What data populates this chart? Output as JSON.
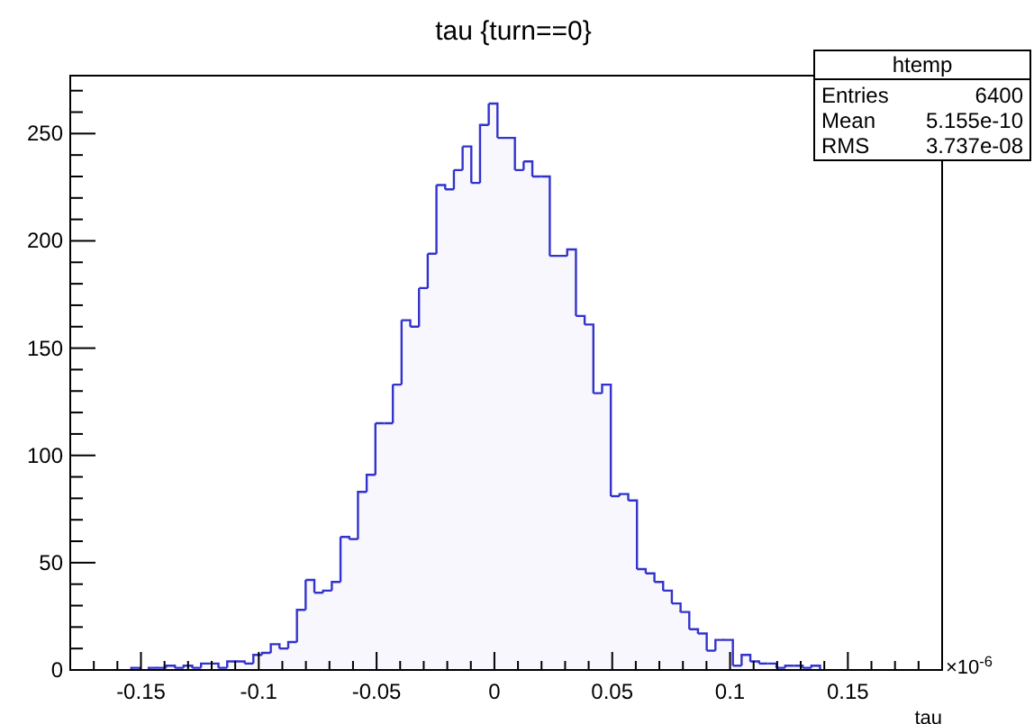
{
  "chart_data": {
    "type": "histogram",
    "title": "tau {turn==0}",
    "xlabel": "tau",
    "bins": [
      -0.18,
      -0.1763,
      -0.1726,
      -0.1689,
      -0.1652,
      -0.1615,
      -0.1578,
      -0.1541,
      -0.1504,
      -0.1467,
      -0.143,
      -0.1393,
      -0.1356,
      -0.1319,
      -0.1282,
      -0.1245,
      -0.1208,
      -0.1171,
      -0.1134,
      -0.1097,
      -0.106,
      -0.1023,
      -0.0986,
      -0.0949,
      -0.0912,
      -0.0875,
      -0.0838,
      -0.0801,
      -0.0764,
      -0.0727,
      -0.069,
      -0.0653,
      -0.0616,
      -0.0579,
      -0.0542,
      -0.0505,
      -0.0468,
      -0.0431,
      -0.0394,
      -0.0357,
      -0.032,
      -0.0283,
      -0.0246,
      -0.0209,
      -0.0172,
      -0.0135,
      -0.0098,
      -0.0061,
      -0.0024,
      0.0013,
      0.005,
      0.0087,
      0.0124,
      0.0161,
      0.0198,
      0.0235,
      0.0272,
      0.0309,
      0.0346,
      0.0383,
      0.042,
      0.0457,
      0.0494,
      0.0531,
      0.0568,
      0.0605,
      0.0642,
      0.0679,
      0.0716,
      0.0753,
      0.079,
      0.0827,
      0.0864,
      0.0901,
      0.0938,
      0.0975,
      0.1012,
      0.1049,
      0.1086,
      0.1123,
      0.116,
      0.1197,
      0.1234,
      0.1271,
      0.1308,
      0.1345,
      0.1382,
      0.1419,
      0.1456,
      0.1493,
      0.153,
      0.1567,
      0.1604,
      0.1641,
      0.1678,
      0.1715,
      0.1752,
      0.1789,
      0.1826,
      0.1863,
      0.19
    ],
    "values": [
      0,
      0,
      0,
      0,
      0,
      0,
      0,
      1,
      0,
      1,
      1,
      2,
      1,
      2,
      1,
      3,
      3,
      1,
      4,
      4,
      3,
      7,
      8,
      12,
      10,
      13,
      28,
      42,
      36,
      37,
      41,
      62,
      61,
      83,
      91,
      115,
      115,
      133,
      163,
      160,
      178,
      194,
      226,
      224,
      233,
      244,
      227,
      254,
      264,
      248,
      248,
      233,
      237,
      230,
      230,
      193,
      193,
      196,
      165,
      161,
      129,
      133,
      81,
      82,
      79,
      47,
      45,
      41,
      37,
      31,
      27,
      19,
      17,
      9,
      14,
      14,
      2,
      7,
      4,
      3,
      3,
      1,
      2,
      2,
      1,
      2,
      0,
      0,
      0,
      0,
      0,
      0,
      0,
      0,
      0,
      0,
      0,
      0,
      0,
      0
    ],
    "color": "#3333cc",
    "xlim": [
      -0.18,
      0.19
    ],
    "ylim": [
      0,
      277
    ],
    "xticks": [
      {
        "value": -0.17,
        "label": null
      },
      {
        "value": -0.16,
        "label": null
      },
      {
        "value": -0.15,
        "label": "-0.15"
      },
      {
        "value": -0.14,
        "label": null
      },
      {
        "value": -0.13,
        "label": null
      },
      {
        "value": -0.12,
        "label": null
      },
      {
        "value": -0.11,
        "label": null
      },
      {
        "value": -0.1,
        "label": "-0.1"
      },
      {
        "value": -0.09,
        "label": null
      },
      {
        "value": -0.08,
        "label": null
      },
      {
        "value": -0.07,
        "label": null
      },
      {
        "value": -0.06,
        "label": null
      },
      {
        "value": -0.05,
        "label": "-0.05"
      },
      {
        "value": -0.04,
        "label": null
      },
      {
        "value": -0.03,
        "label": null
      },
      {
        "value": -0.02,
        "label": null
      },
      {
        "value": -0.01,
        "label": null
      },
      0,
      {
        "value": 0.01,
        "label": null
      },
      {
        "value": 0.02,
        "label": null
      },
      {
        "value": 0.03,
        "label": null
      },
      {
        "value": 0.04,
        "label": null
      },
      0.05,
      {
        "value": 0.06,
        "label": null
      },
      {
        "value": 0.07,
        "label": null
      },
      {
        "value": 0.08,
        "label": null
      },
      {
        "value": 0.09,
        "label": null
      },
      0.1,
      {
        "value": 0.11,
        "label": null
      },
      {
        "value": 0.12,
        "label": null
      },
      {
        "value": 0.13,
        "label": null
      },
      {
        "value": 0.14,
        "label": null
      },
      0.15,
      {
        "value": 0.16,
        "label": null
      },
      {
        "value": 0.17,
        "label": null
      },
      {
        "value": 0.18,
        "label": null
      }
    ],
    "yticks": [
      0,
      {
        "value": 10,
        "label": null
      },
      {
        "value": 20,
        "label": null
      },
      {
        "value": 30,
        "label": null
      },
      {
        "value": 40,
        "label": null
      },
      50,
      {
        "value": 60,
        "label": null
      },
      {
        "value": 70,
        "label": null
      },
      {
        "value": 80,
        "label": null
      },
      {
        "value": 90,
        "label": null
      },
      100,
      {
        "value": 110,
        "label": null
      },
      {
        "value": 120,
        "label": null
      },
      {
        "value": 130,
        "label": null
      },
      {
        "value": 140,
        "label": null
      },
      150,
      {
        "value": 160,
        "label": null
      },
      {
        "value": 170,
        "label": null
      },
      {
        "value": 180,
        "label": null
      },
      {
        "value": 190,
        "label": null
      },
      200,
      {
        "value": 210,
        "label": null
      },
      {
        "value": 220,
        "label": null
      },
      {
        "value": 230,
        "label": null
      },
      {
        "value": 240,
        "label": null
      },
      250,
      {
        "value": 260,
        "label": null
      },
      {
        "value": 270,
        "label": null
      }
    ],
    "annotations": [
      "htemp",
      "Entries",
      "6400",
      "Mean",
      "5.155e-10",
      "RMS",
      "3.737e-08",
      "×10$^{-6}$"
    ]
  }
}
